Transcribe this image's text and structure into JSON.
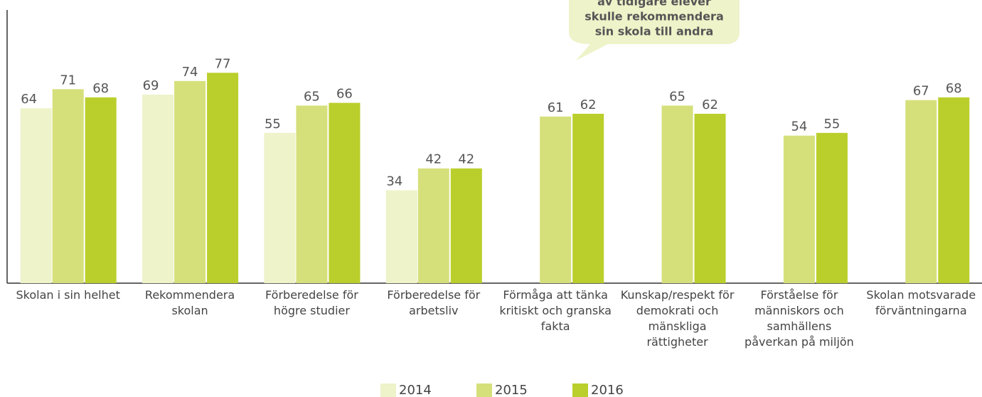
{
  "chart_data": {
    "type": "bar",
    "categories": [
      "Skolan i sin helhet",
      "Rekommendera skolan",
      "Förberedelse för högre studier",
      "Förberedelse för arbetsliv",
      "Förmåga att tänka kritiskt och granska fakta",
      "Kunskap/respekt för demokrati och mänskliga rättigheter",
      "Förståelse för människors och samhällens påverkan på miljön",
      "Skolan motsvarade förväntningarna"
    ],
    "series": [
      {
        "name": "2014",
        "color": "#eef3c9",
        "values": [
          64,
          69,
          55,
          34,
          null,
          null,
          null,
          null
        ]
      },
      {
        "name": "2015",
        "color": "#d6e07b",
        "values": [
          71,
          74,
          65,
          42,
          61,
          65,
          54,
          67
        ]
      },
      {
        "name": "2016",
        "color": "#bacf2b",
        "values": [
          68,
          77,
          66,
          42,
          62,
          62,
          55,
          68
        ]
      }
    ],
    "ylim": [
      0,
      100
    ],
    "annotation": [
      "av tidigare elever",
      "skulle rekommendera",
      "sin skola till andra"
    ]
  }
}
